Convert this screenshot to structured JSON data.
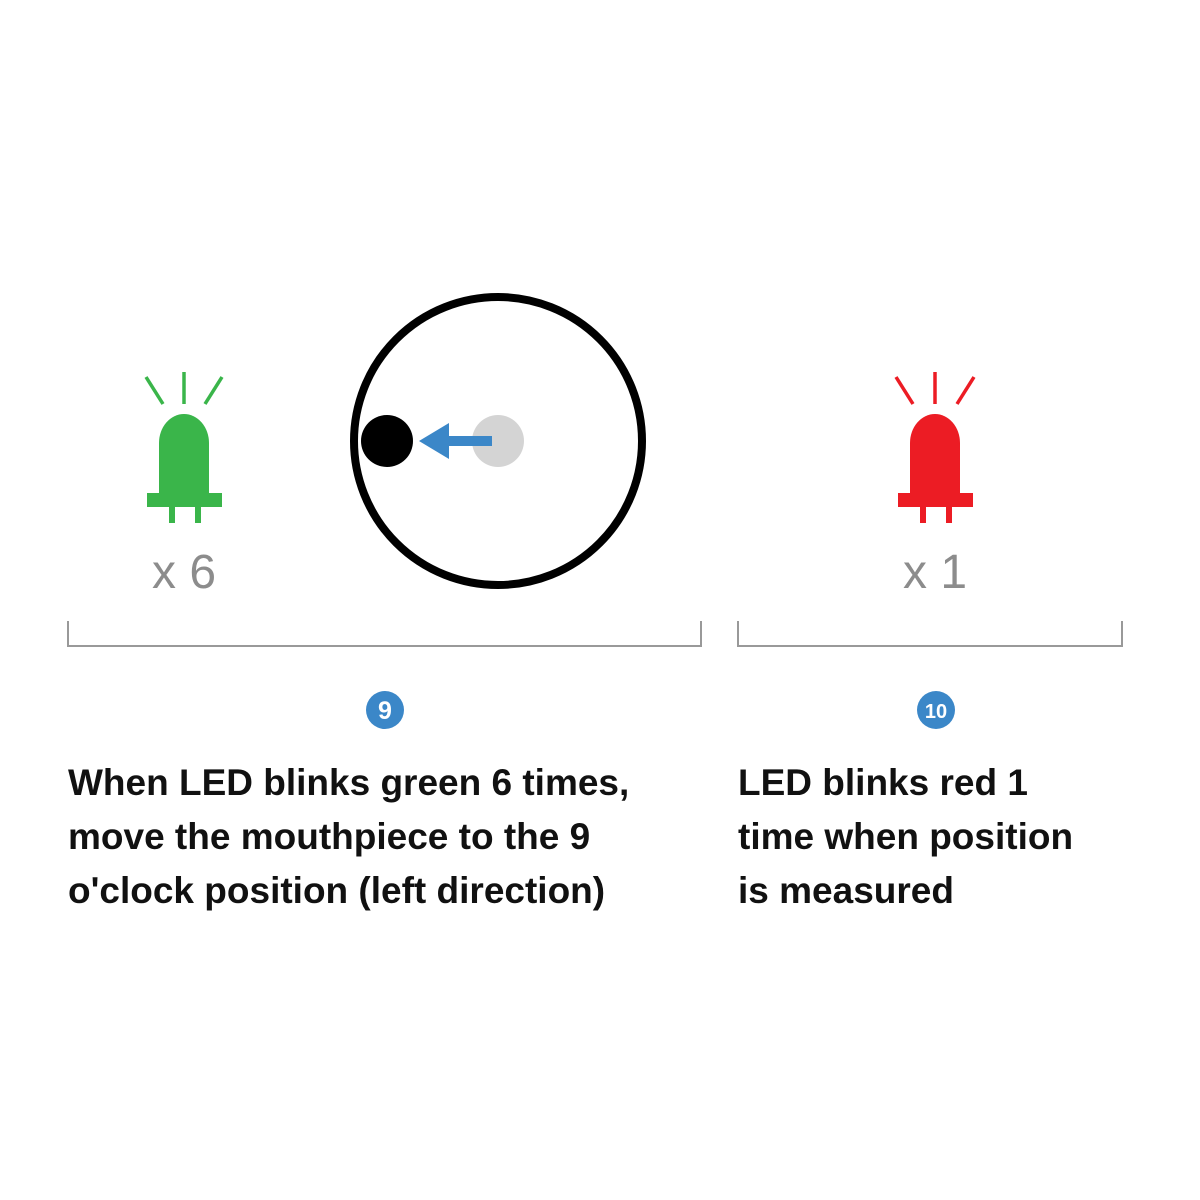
{
  "colors": {
    "green_led": "#3ab54a",
    "red_led": "#ec1c24",
    "arrow": "#3b87c8",
    "badge": "#3b87c8",
    "count_text": "#8c8c8c",
    "bracket": "#999999",
    "ring": "#000000",
    "start_dot": "#d4d4d4",
    "end_dot": "#000000"
  },
  "left": {
    "led_color": "green",
    "count_label": "x 6"
  },
  "right": {
    "led_color": "red",
    "count_label": "x 1"
  },
  "steps": [
    {
      "number": "9",
      "lines": [
        "When LED blinks green 6 times,",
        "move the mouthpiece to the 9",
        "o'clock position (left direction)"
      ]
    },
    {
      "number": "10",
      "lines": [
        "LED blinks red 1",
        "time when position",
        "is measured"
      ]
    }
  ]
}
